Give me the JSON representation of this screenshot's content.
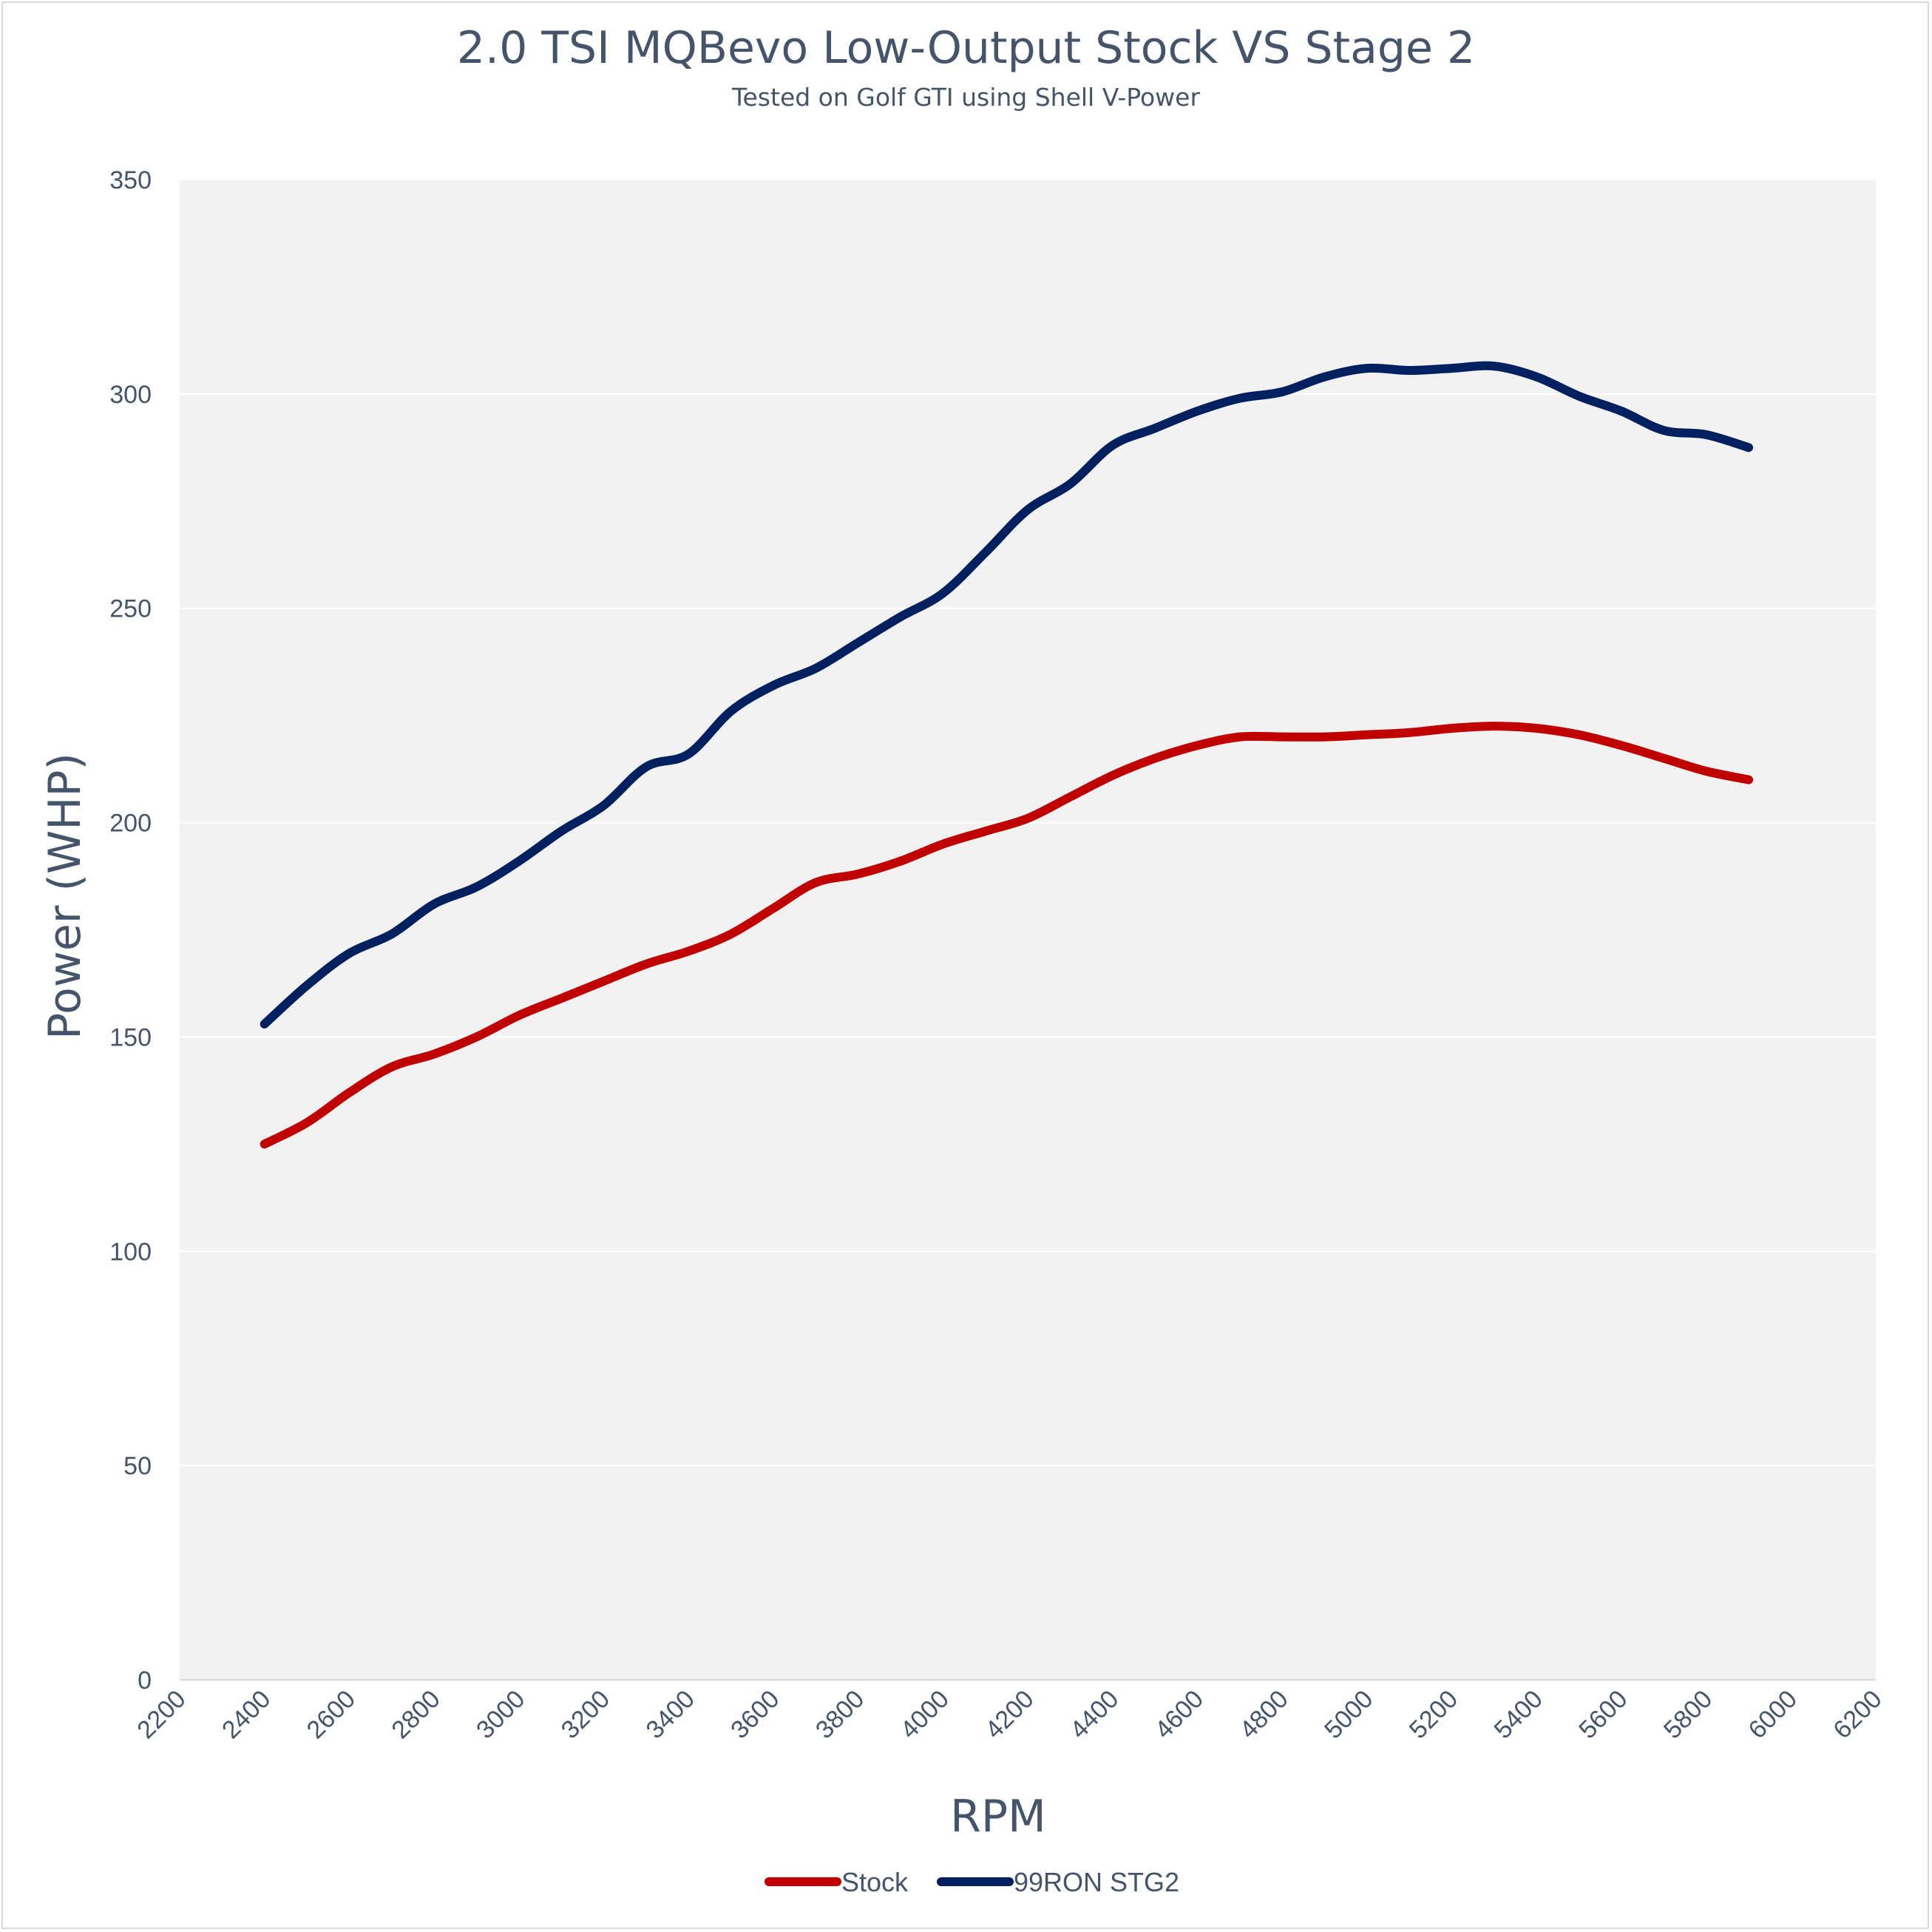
{
  "chart_data": {
    "type": "line",
    "title": "2.0 TSI MQBevo Low-Output Stock VS Stage 2",
    "subtitle": "Tested on Golf GTI using Shell V-Power",
    "xlabel": "RPM",
    "ylabel": "Power (WHP)",
    "xlim": [
      2200,
      6200
    ],
    "ylim": [
      0,
      350
    ],
    "xticks": [
      2200,
      2400,
      2600,
      2800,
      3000,
      3200,
      3400,
      3600,
      3800,
      4000,
      4200,
      4400,
      4600,
      4800,
      5000,
      5200,
      5400,
      5600,
      5800,
      6000,
      6200
    ],
    "yticks": [
      0,
      50,
      100,
      150,
      200,
      250,
      300,
      350
    ],
    "grid": "horizontal",
    "legend": "bottom",
    "series": [
      {
        "name": "Stock",
        "color": "#c00000",
        "points": [
          [
            2400,
            125
          ],
          [
            2500,
            130
          ],
          [
            2600,
            137
          ],
          [
            2700,
            143
          ],
          [
            2800,
            146
          ],
          [
            2900,
            150
          ],
          [
            3000,
            155
          ],
          [
            3100,
            159
          ],
          [
            3200,
            163
          ],
          [
            3300,
            167
          ],
          [
            3400,
            170
          ],
          [
            3500,
            174
          ],
          [
            3600,
            180
          ],
          [
            3700,
            186
          ],
          [
            3800,
            188
          ],
          [
            3900,
            191
          ],
          [
            4000,
            195
          ],
          [
            4100,
            198
          ],
          [
            4200,
            201
          ],
          [
            4300,
            206
          ],
          [
            4400,
            211
          ],
          [
            4500,
            215
          ],
          [
            4600,
            218
          ],
          [
            4700,
            220
          ],
          [
            4800,
            220
          ],
          [
            4900,
            220
          ],
          [
            5000,
            220.5
          ],
          [
            5100,
            221
          ],
          [
            5200,
            222
          ],
          [
            5300,
            222.5
          ],
          [
            5400,
            222
          ],
          [
            5500,
            220.5
          ],
          [
            5600,
            218
          ],
          [
            5700,
            215
          ],
          [
            5800,
            212
          ],
          [
            5900,
            210
          ]
        ]
      },
      {
        "name": "99RON STG2",
        "color": "#002060",
        "points": [
          [
            2400,
            153
          ],
          [
            2500,
            162
          ],
          [
            2600,
            169.5
          ],
          [
            2700,
            174
          ],
          [
            2800,
            181
          ],
          [
            2900,
            185
          ],
          [
            3000,
            191
          ],
          [
            3100,
            198
          ],
          [
            3200,
            204
          ],
          [
            3300,
            213
          ],
          [
            3400,
            216
          ],
          [
            3500,
            226
          ],
          [
            3600,
            232
          ],
          [
            3700,
            236
          ],
          [
            3800,
            242
          ],
          [
            3900,
            248
          ],
          [
            4000,
            253.5
          ],
          [
            4100,
            263
          ],
          [
            4200,
            273
          ],
          [
            4300,
            279
          ],
          [
            4400,
            288
          ],
          [
            4500,
            292
          ],
          [
            4600,
            296
          ],
          [
            4700,
            299
          ],
          [
            4800,
            300.5
          ],
          [
            4900,
            304
          ],
          [
            5000,
            306
          ],
          [
            5100,
            305.5
          ],
          [
            5200,
            306
          ],
          [
            5300,
            306.5
          ],
          [
            5400,
            304
          ],
          [
            5500,
            299.5
          ],
          [
            5600,
            296
          ],
          [
            5700,
            291.5
          ],
          [
            5800,
            290.5
          ],
          [
            5900,
            287.5
          ]
        ]
      }
    ]
  }
}
